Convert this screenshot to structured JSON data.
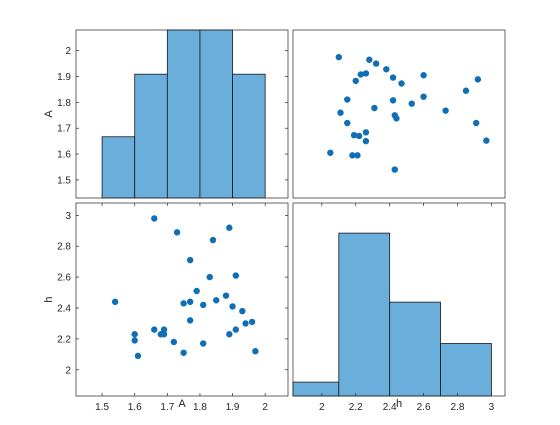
{
  "chart_data": {
    "type": "scatter-matrix",
    "variables": [
      "A",
      "h"
    ],
    "colors": {
      "bar": "#6aaedb",
      "bar_edge": "#1a1a1a",
      "marker": "#0f6eb4",
      "axis": "#262626"
    },
    "panels": [
      {
        "name": "A-A",
        "type": "bar",
        "xlim": [
          1.42,
          2.07
        ],
        "ylim": [
          1.43,
          2.08
        ],
        "yticks": [
          "1.5",
          "1.6",
          "1.7",
          "1.8",
          "1.9",
          "2"
        ],
        "bins": [
          {
            "start": 1.5,
            "end": 1.6,
            "value": 1.667
          },
          {
            "start": 1.6,
            "end": 1.7,
            "value": 1.909
          },
          {
            "start": 1.7,
            "end": 1.8,
            "value": 2.08
          },
          {
            "start": 1.8,
            "end": 1.9,
            "value": 2.08
          },
          {
            "start": 1.9,
            "end": 2.0,
            "value": 1.909
          }
        ],
        "ylabel": "A"
      },
      {
        "name": "h-A",
        "type": "scatter",
        "xlim": [
          1.83,
          3.08
        ],
        "ylim": [
          1.43,
          2.08
        ],
        "points": [
          [
            2.1,
            1.975
          ],
          [
            2.28,
            1.965
          ],
          [
            2.32,
            1.95
          ],
          [
            2.38,
            1.928
          ],
          [
            2.23,
            1.908
          ],
          [
            2.2,
            1.883
          ],
          [
            2.26,
            1.912
          ],
          [
            2.42,
            1.896
          ],
          [
            2.47,
            1.873
          ],
          [
            2.6,
            1.905
          ],
          [
            2.92,
            1.889
          ],
          [
            2.85,
            1.845
          ],
          [
            2.15,
            1.811
          ],
          [
            2.42,
            1.808
          ],
          [
            2.53,
            1.795
          ],
          [
            2.6,
            1.822
          ],
          [
            2.31,
            1.778
          ],
          [
            2.73,
            1.768
          ],
          [
            2.11,
            1.76
          ],
          [
            2.43,
            1.75
          ],
          [
            2.44,
            1.738
          ],
          [
            2.15,
            1.72
          ],
          [
            2.91,
            1.72
          ],
          [
            2.26,
            1.684
          ],
          [
            2.19,
            1.673
          ],
          [
            2.22,
            1.67
          ],
          [
            2.26,
            1.65
          ],
          [
            2.05,
            1.605
          ],
          [
            2.18,
            1.595
          ],
          [
            2.21,
            1.595
          ],
          [
            2.97,
            1.652
          ],
          [
            2.43,
            1.54
          ]
        ]
      },
      {
        "name": "A-h",
        "type": "scatter",
        "xlim": [
          1.42,
          2.07
        ],
        "ylim": [
          1.83,
          3.08
        ],
        "yticks": [
          "2",
          "2.2",
          "2.4",
          "2.6",
          "2.8",
          "3"
        ],
        "xticks": [
          "1.5",
          "1.6",
          "1.7",
          "1.8",
          "1.9",
          "2"
        ],
        "points": [
          [
            1.66,
            2.98
          ],
          [
            1.73,
            2.89
          ],
          [
            1.84,
            2.84
          ],
          [
            1.89,
            2.92
          ],
          [
            1.77,
            2.71
          ],
          [
            1.83,
            2.6
          ],
          [
            1.91,
            2.61
          ],
          [
            1.54,
            2.44
          ],
          [
            1.75,
            2.43
          ],
          [
            1.77,
            2.44
          ],
          [
            1.81,
            2.42
          ],
          [
            1.85,
            2.45
          ],
          [
            1.88,
            2.48
          ],
          [
            1.9,
            2.41
          ],
          [
            1.93,
            2.38
          ],
          [
            1.96,
            2.31
          ],
          [
            1.94,
            2.3
          ],
          [
            1.91,
            2.26
          ],
          [
            1.89,
            2.23
          ],
          [
            1.97,
            2.12
          ],
          [
            1.6,
            2.23
          ],
          [
            1.6,
            2.19
          ],
          [
            1.61,
            2.09
          ],
          [
            1.66,
            2.26
          ],
          [
            1.68,
            2.23
          ],
          [
            1.69,
            2.23
          ],
          [
            1.69,
            2.26
          ],
          [
            1.72,
            2.18
          ],
          [
            1.75,
            2.11
          ],
          [
            1.77,
            2.32
          ],
          [
            1.81,
            2.17
          ],
          [
            1.79,
            2.51
          ]
        ],
        "xlabel": "A",
        "ylabel": "h"
      },
      {
        "name": "h-h",
        "type": "bar",
        "xlim": [
          1.83,
          3.08
        ],
        "ylim": [
          1.83,
          3.08
        ],
        "xticks": [
          "2",
          "2.2",
          "2.4",
          "2.6",
          "2.8",
          "3"
        ],
        "bins": [
          {
            "start": 1.83,
            "end": 2.1,
            "value": 1.92
          },
          {
            "start": 2.1,
            "end": 2.4,
            "value": 2.885
          },
          {
            "start": 2.4,
            "end": 2.7,
            "value": 2.438
          },
          {
            "start": 2.7,
            "end": 3.0,
            "value": 2.17
          }
        ],
        "xlabel": "h"
      }
    ]
  }
}
